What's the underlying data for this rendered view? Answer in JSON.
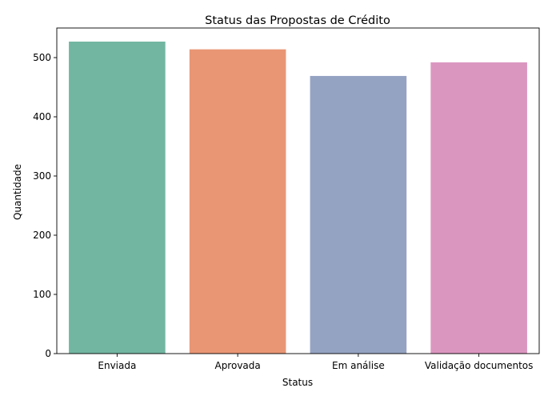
{
  "chart_data": {
    "type": "bar",
    "title": "Status das Propostas de Crédito",
    "xlabel": "Status",
    "ylabel": "Quantidade",
    "categories": [
      "Enviada",
      "Aprovada",
      "Em análise",
      "Validação documentos"
    ],
    "values": [
      527,
      514,
      469,
      492
    ],
    "colors": [
      "#72b6a1",
      "#e99675",
      "#95a3c3",
      "#db96c0"
    ],
    "ylim": [
      0,
      550
    ],
    "yticks": [
      0,
      100,
      200,
      300,
      400,
      500
    ],
    "grid": false,
    "legend": "none"
  }
}
